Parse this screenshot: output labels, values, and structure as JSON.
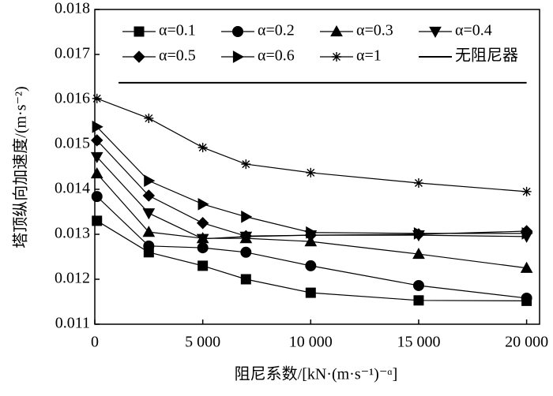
{
  "chart_data": {
    "type": "line",
    "y_label": "塔顶纵向加速度/(m·s⁻²)",
    "x_label": "阻尼系数/[kN·(m·s⁻¹)⁻ᵅ]",
    "xlim": [
      0,
      20600
    ],
    "ylim": [
      0.011,
      0.018
    ],
    "xticks": [
      0,
      {
        "value": 5000,
        "label": "5 000"
      },
      {
        "value": 10000,
        "label": "10 000"
      },
      {
        "value": 15000,
        "label": "15 000"
      },
      {
        "value": 20000,
        "label": "20 000"
      }
    ],
    "yticks": [
      0.011,
      0.012,
      0.013,
      0.014,
      0.015,
      0.016,
      0.017,
      0.018
    ],
    "x": [
      100,
      2500,
      5000,
      7000,
      10000,
      15000,
      20000
    ],
    "series": [
      {
        "name": "α=0.1",
        "color": "#000000",
        "marker": "square",
        "values": [
          0.0133,
          0.0126,
          0.0123,
          0.012,
          0.0117,
          0.01153,
          0.01152
        ]
      },
      {
        "name": "α=0.2",
        "color": "#000000",
        "marker": "circle",
        "values": [
          0.01384,
          0.01274,
          0.0127,
          0.0126,
          0.0123,
          0.01186,
          0.01158
        ]
      },
      {
        "name": "α=0.3",
        "color": "#000000",
        "marker": "triangle-up",
        "values": [
          0.01435,
          0.01305,
          0.01291,
          0.01291,
          0.01284,
          0.01256,
          0.01225
        ]
      },
      {
        "name": "α=0.4",
        "color": "#000000",
        "marker": "triangle-down",
        "values": [
          0.01472,
          0.01347,
          0.0129,
          0.01295,
          0.01298,
          0.01298,
          0.01295
        ]
      },
      {
        "name": "α=0.5",
        "color": "#000000",
        "marker": "diamond",
        "values": [
          0.01509,
          0.01386,
          0.01325,
          0.01296,
          0.01298,
          0.013,
          0.01307
        ]
      },
      {
        "name": "α=0.6",
        "color": "#000000",
        "marker": "triangle-right",
        "values": [
          0.01539,
          0.01419,
          0.01367,
          0.01339,
          0.01304,
          0.01302,
          0.01302
        ]
      },
      {
        "name": "α=1",
        "color": "#000000",
        "marker": "star",
        "values": [
          0.01602,
          0.01558,
          0.01493,
          0.01456,
          0.01437,
          0.01414,
          0.01395
        ]
      },
      {
        "name": "无阻尼器",
        "color": "#000000",
        "marker": "none",
        "x": [
          1100,
          20000
        ],
        "values": [
          0.01637,
          0.01637
        ]
      }
    ]
  }
}
